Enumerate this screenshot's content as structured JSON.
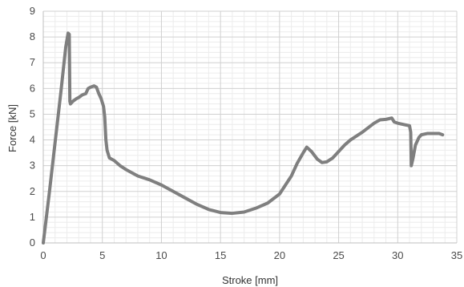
{
  "chart_data": {
    "type": "line",
    "xlabel": "Stroke [mm]",
    "ylabel": "Force [kN]",
    "xlim": [
      0,
      35
    ],
    "ylim": [
      0,
      9
    ],
    "x_ticks": [
      0,
      5,
      10,
      15,
      20,
      25,
      30,
      35
    ],
    "y_ticks": [
      0,
      1,
      2,
      3,
      4,
      5,
      6,
      7,
      8,
      9
    ],
    "x_minor_step": 1,
    "y_minor_step": 0.2,
    "grid": true,
    "legend": "none",
    "line_color": "#7f7f7f",
    "series": [
      {
        "points": [
          [
            0.0,
            0.0
          ],
          [
            0.5,
            1.9
          ],
          [
            1.0,
            3.9
          ],
          [
            1.5,
            5.9
          ],
          [
            1.9,
            7.6
          ],
          [
            2.1,
            8.15
          ],
          [
            2.2,
            8.1
          ],
          [
            2.25,
            5.5
          ],
          [
            2.3,
            5.4
          ],
          [
            2.5,
            5.5
          ],
          [
            2.8,
            5.6
          ],
          [
            3.0,
            5.65
          ],
          [
            3.3,
            5.75
          ],
          [
            3.6,
            5.8
          ],
          [
            3.8,
            6.0
          ],
          [
            4.0,
            6.05
          ],
          [
            4.3,
            6.1
          ],
          [
            4.5,
            6.05
          ],
          [
            4.7,
            5.8
          ],
          [
            4.9,
            5.6
          ],
          [
            5.1,
            5.3
          ],
          [
            5.2,
            4.9
          ],
          [
            5.3,
            4.0
          ],
          [
            5.4,
            3.6
          ],
          [
            5.6,
            3.3
          ],
          [
            6.0,
            3.2
          ],
          [
            6.5,
            3.0
          ],
          [
            7.0,
            2.85
          ],
          [
            8.0,
            2.6
          ],
          [
            9.0,
            2.45
          ],
          [
            10.0,
            2.25
          ],
          [
            11.0,
            2.0
          ],
          [
            12.0,
            1.75
          ],
          [
            13.0,
            1.5
          ],
          [
            14.0,
            1.3
          ],
          [
            15.0,
            1.18
          ],
          [
            16.0,
            1.15
          ],
          [
            17.0,
            1.2
          ],
          [
            18.0,
            1.35
          ],
          [
            19.0,
            1.55
          ],
          [
            20.0,
            1.9
          ],
          [
            21.0,
            2.6
          ],
          [
            21.5,
            3.1
          ],
          [
            22.0,
            3.5
          ],
          [
            22.3,
            3.72
          ],
          [
            22.7,
            3.55
          ],
          [
            23.2,
            3.25
          ],
          [
            23.6,
            3.12
          ],
          [
            24.0,
            3.15
          ],
          [
            24.5,
            3.3
          ],
          [
            25.0,
            3.55
          ],
          [
            25.5,
            3.8
          ],
          [
            26.0,
            4.0
          ],
          [
            27.0,
            4.3
          ],
          [
            28.0,
            4.65
          ],
          [
            28.5,
            4.78
          ],
          [
            29.0,
            4.8
          ],
          [
            29.5,
            4.85
          ],
          [
            29.7,
            4.7
          ],
          [
            30.0,
            4.65
          ],
          [
            30.5,
            4.6
          ],
          [
            31.0,
            4.55
          ],
          [
            31.1,
            4.3
          ],
          [
            31.15,
            3.0
          ],
          [
            31.3,
            3.3
          ],
          [
            31.5,
            3.8
          ],
          [
            31.8,
            4.1
          ],
          [
            32.0,
            4.2
          ],
          [
            32.5,
            4.25
          ],
          [
            33.0,
            4.25
          ],
          [
            33.5,
            4.25
          ],
          [
            33.8,
            4.2
          ]
        ]
      }
    ]
  }
}
